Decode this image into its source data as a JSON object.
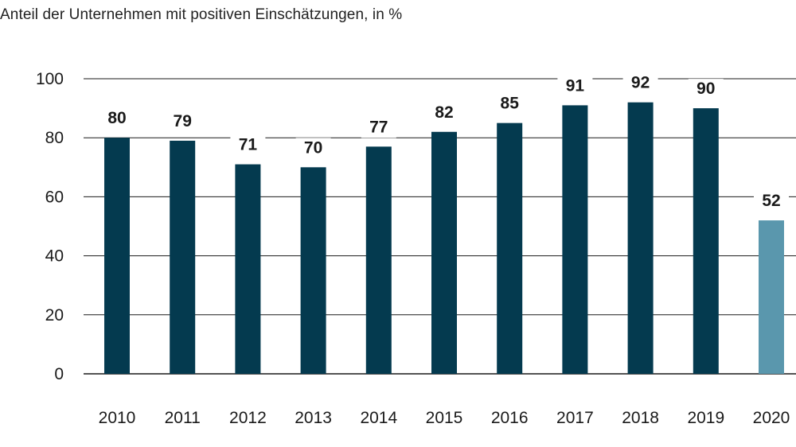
{
  "chart_data": {
    "type": "bar",
    "title": "",
    "subtitle": "Anteil der Unternehmen mit positiven Einschätzungen, in %",
    "xlabel": "",
    "ylabel": "",
    "categories": [
      "2010",
      "2011",
      "2012",
      "2013",
      "2014",
      "2015",
      "2016",
      "2017",
      "2018",
      "2019",
      "2020"
    ],
    "values": [
      80,
      79,
      71,
      70,
      77,
      82,
      85,
      91,
      92,
      90,
      52
    ],
    "ylim": [
      0,
      100
    ],
    "yticks": [
      0,
      20,
      40,
      60,
      80,
      100
    ],
    "grid": true,
    "legend": "none",
    "colors": {
      "bar": "#043a4f",
      "highlight_bar": "#5a97ad",
      "gridline": "#1a1a1a",
      "text": "#1a1a1a"
    },
    "highlight_categories": [
      "2020"
    ]
  }
}
